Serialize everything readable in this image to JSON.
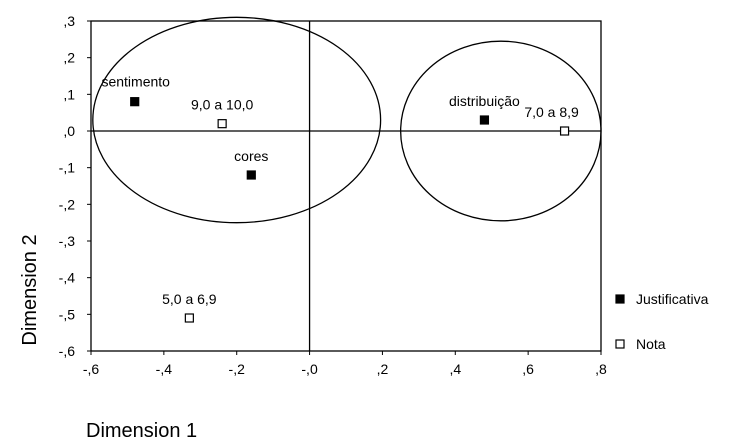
{
  "chart_data": {
    "type": "scatter",
    "xlabel": "Dimension 1",
    "ylabel": "Dimension 2",
    "xlim": [
      -0.6,
      0.8
    ],
    "ylim": [
      -0.6,
      0.3
    ],
    "x_ticks": [
      -0.6,
      -0.4,
      -0.2,
      0.0,
      0.2,
      0.4,
      0.6,
      0.8
    ],
    "x_tick_labels": [
      "-,6",
      "-,4",
      "-,2",
      "-,0",
      ",2",
      ",4",
      ",6",
      ",8"
    ],
    "y_ticks": [
      0.3,
      0.2,
      0.1,
      0.0,
      -0.1,
      -0.2,
      -0.3,
      -0.4,
      -0.5,
      -0.6
    ],
    "y_tick_labels": [
      ",3",
      ",2",
      ",1",
      ",0",
      "-,1",
      "-,2",
      "-,3",
      "-,4",
      "-,5",
      "-,6"
    ],
    "grid": false,
    "reference_lines": {
      "x": 0.0,
      "y": 0.0
    },
    "legend_position": "right",
    "series": [
      {
        "name": "Justificativa",
        "marker": "filled-square",
        "color": "#000000",
        "points": [
          {
            "label": "sentimento",
            "x": -0.48,
            "y": 0.08
          },
          {
            "label": "cores",
            "x": -0.16,
            "y": -0.12
          },
          {
            "label": "distribuição",
            "x": 0.48,
            "y": 0.03
          }
        ]
      },
      {
        "name": "Nota",
        "marker": "open-square",
        "color": "#000000",
        "points": [
          {
            "label": "9,0 a 10,0",
            "x": -0.24,
            "y": 0.02
          },
          {
            "label": "5,0 a 6,9",
            "x": -0.33,
            "y": -0.51
          },
          {
            "label": "7,0 a 8,9",
            "x": 0.7,
            "y": 0.0
          }
        ]
      }
    ],
    "ellipses": [
      {
        "center_x": -0.2,
        "center_y": 0.03,
        "radius_x": 0.395,
        "radius_y": 0.28
      },
      {
        "center_x": 0.525,
        "center_y": 0.0,
        "radius_x": 0.275,
        "radius_y": 0.245
      }
    ]
  }
}
